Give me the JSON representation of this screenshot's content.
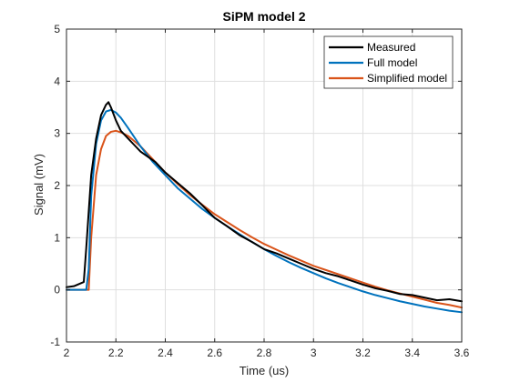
{
  "chart_data": {
    "type": "line",
    "title": "SiPM model 2",
    "xlabel": "Time (us)",
    "ylabel": "Signal (mV)",
    "xlim": [
      2,
      3.6
    ],
    "ylim": [
      -1,
      5
    ],
    "xticks": [
      2,
      2.2,
      2.4,
      2.6,
      2.8,
      3,
      3.2,
      3.4,
      3.6
    ],
    "xtick_labels": [
      "2",
      "2.2",
      "2.4",
      "2.6",
      "2.8",
      "3",
      "3.2",
      "3.4",
      "3.6"
    ],
    "yticks": [
      -1,
      0,
      1,
      2,
      3,
      4,
      5
    ],
    "ytick_labels": [
      "-1",
      "0",
      "1",
      "2",
      "3",
      "4",
      "5"
    ],
    "grid": true,
    "legend_position": "top-right",
    "series": [
      {
        "name": "Measured",
        "color": "#000000",
        "x": [
          2.0,
          2.03,
          2.07,
          2.08,
          2.1,
          2.12,
          2.14,
          2.16,
          2.17,
          2.18,
          2.2,
          2.22,
          2.25,
          2.28,
          2.3,
          2.33,
          2.36,
          2.4,
          2.45,
          2.5,
          2.55,
          2.6,
          2.65,
          2.7,
          2.75,
          2.8,
          2.85,
          2.9,
          2.95,
          3.0,
          3.05,
          3.1,
          3.15,
          3.2,
          3.25,
          3.3,
          3.35,
          3.4,
          3.45,
          3.5,
          3.55,
          3.6
        ],
        "y": [
          0.05,
          0.07,
          0.15,
          0.8,
          2.2,
          2.9,
          3.35,
          3.55,
          3.6,
          3.5,
          3.25,
          3.05,
          2.9,
          2.75,
          2.65,
          2.55,
          2.45,
          2.25,
          2.05,
          1.85,
          1.62,
          1.38,
          1.22,
          1.05,
          0.92,
          0.78,
          0.7,
          0.6,
          0.5,
          0.4,
          0.32,
          0.26,
          0.18,
          0.1,
          0.03,
          -0.02,
          -0.08,
          -0.1,
          -0.15,
          -0.2,
          -0.18,
          -0.22
        ]
      },
      {
        "name": "Full model",
        "color": "#0072BD",
        "x": [
          2.0,
          2.08,
          2.09,
          2.1,
          2.12,
          2.14,
          2.16,
          2.18,
          2.2,
          2.22,
          2.25,
          2.3,
          2.35,
          2.4,
          2.45,
          2.5,
          2.55,
          2.6,
          2.65,
          2.7,
          2.75,
          2.8,
          2.85,
          2.9,
          2.95,
          3.0,
          3.05,
          3.1,
          3.15,
          3.2,
          3.25,
          3.3,
          3.35,
          3.4,
          3.45,
          3.5,
          3.55,
          3.6
        ],
        "y": [
          0.0,
          0.0,
          0.4,
          1.8,
          2.8,
          3.25,
          3.42,
          3.45,
          3.4,
          3.3,
          3.1,
          2.75,
          2.45,
          2.2,
          1.95,
          1.75,
          1.55,
          1.38,
          1.22,
          1.07,
          0.92,
          0.78,
          0.65,
          0.53,
          0.42,
          0.32,
          0.22,
          0.13,
          0.05,
          -0.03,
          -0.1,
          -0.16,
          -0.22,
          -0.27,
          -0.32,
          -0.36,
          -0.4,
          -0.43
        ]
      },
      {
        "name": "Simplified model",
        "color": "#D95319",
        "x": [
          2.0,
          2.09,
          2.1,
          2.12,
          2.14,
          2.16,
          2.18,
          2.2,
          2.22,
          2.25,
          2.3,
          2.35,
          2.4,
          2.45,
          2.5,
          2.55,
          2.6,
          2.65,
          2.7,
          2.75,
          2.8,
          2.85,
          2.9,
          2.95,
          3.0,
          3.05,
          3.1,
          3.15,
          3.2,
          3.25,
          3.3,
          3.35,
          3.4,
          3.45,
          3.5,
          3.55,
          3.6
        ],
        "y": [
          0.0,
          0.0,
          1.0,
          2.2,
          2.7,
          2.95,
          3.03,
          3.05,
          3.02,
          2.95,
          2.75,
          2.5,
          2.25,
          2.03,
          1.82,
          1.63,
          1.45,
          1.3,
          1.15,
          1.01,
          0.88,
          0.77,
          0.66,
          0.56,
          0.46,
          0.38,
          0.3,
          0.22,
          0.14,
          0.06,
          -0.01,
          -0.07,
          -0.13,
          -0.19,
          -0.25,
          -0.29,
          -0.34
        ]
      }
    ]
  }
}
